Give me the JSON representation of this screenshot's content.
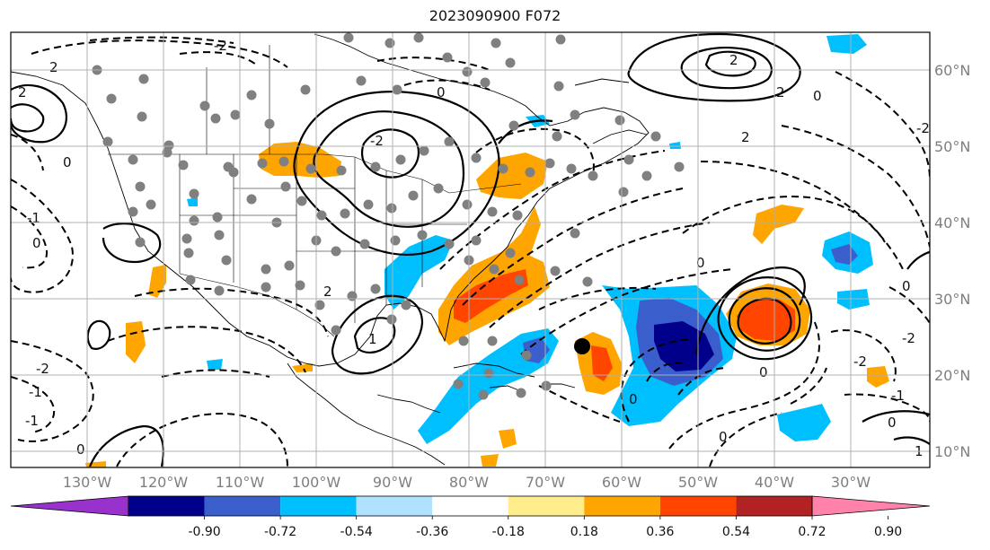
{
  "map": {
    "title": "2023090900 F072",
    "lon_labels": [
      "130°W",
      "120°W",
      "110°W",
      "100°W",
      "90°W",
      "80°W",
      "70°W",
      "60°W",
      "50°W",
      "40°W",
      "30°W"
    ],
    "lat_labels": [
      "60°N",
      "50°N",
      "40°N",
      "30°N",
      "20°N",
      "10°N"
    ],
    "contour_labels": [
      "-2",
      "-1",
      "0",
      "1",
      "2"
    ]
  },
  "colorbar": {
    "tick_labels": [
      "-0.90",
      "-0.72",
      "-0.54",
      "-0.36",
      "-0.18",
      "0.18",
      "0.36",
      "0.54",
      "0.72",
      "0.90"
    ],
    "colors": [
      "#9932cc",
      "#00008b",
      "#3a5fcd",
      "#00bfff",
      "#b0e2ff",
      "#ffffff",
      "#ffec8b",
      "#ffa500",
      "#ff4500",
      "#b22222",
      "#ff82ab"
    ]
  },
  "fill_colors": {
    "dark_blue": "#00008b",
    "mid_blue": "#3a5fcd",
    "cyan": "#00bfff",
    "orange": "#ffa500",
    "red_orange": "#ff4500",
    "station_gray": "#808080"
  }
}
